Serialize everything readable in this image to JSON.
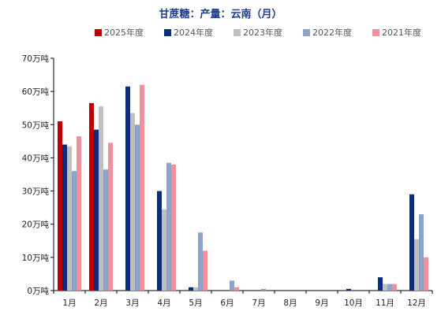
{
  "chart_data": {
    "type": "bar",
    "title": "甘蔗糖：产量：云南（月）",
    "categories": [
      "1月",
      "2月",
      "3月",
      "4月",
      "5月",
      "6月",
      "7月",
      "8月",
      "9月",
      "10月",
      "11月",
      "12月"
    ],
    "y_tick_labels": [
      "0万吨",
      "10万吨",
      "20万吨",
      "30万吨",
      "40万吨",
      "50万吨",
      "60万吨",
      "70万吨"
    ],
    "ylim": [
      0,
      70
    ],
    "legend_position": "top",
    "grid": false,
    "series": [
      {
        "name": "2025年度",
        "color": "#c00000",
        "values": [
          51,
          56.5,
          null,
          null,
          null,
          null,
          null,
          null,
          null,
          null,
          null,
          null
        ]
      },
      {
        "name": "2024年度",
        "color": "#0a2e7a",
        "values": [
          44,
          48.5,
          61.5,
          30,
          1,
          0,
          0,
          0,
          0,
          0.5,
          4,
          29
        ]
      },
      {
        "name": "2023年度",
        "color": "#c0c0c0",
        "values": [
          43.5,
          55.5,
          53.5,
          24.5,
          1,
          0,
          0,
          0,
          0,
          0,
          2,
          15.5
        ]
      },
      {
        "name": "2022年度",
        "color": "#8ea3c9",
        "values": [
          36,
          36.5,
          50,
          38.5,
          17.5,
          3,
          0.5,
          0,
          0,
          0,
          2,
          23
        ]
      },
      {
        "name": "2021年度",
        "color": "#f2919e",
        "values": [
          46.5,
          44.5,
          62,
          38,
          12,
          1,
          0,
          0,
          0,
          0,
          2,
          10
        ]
      }
    ]
  }
}
